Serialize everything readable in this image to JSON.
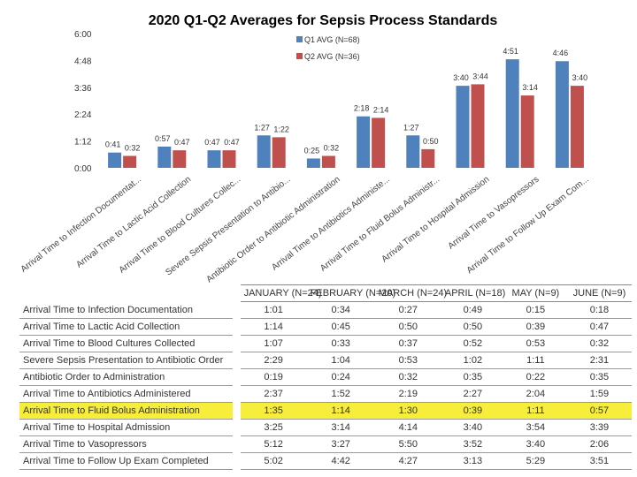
{
  "chart_data": {
    "type": "bar",
    "title": "2020 Q1-Q2 Averages for Sepsis Process Standards",
    "y_ticks": [
      "6:00",
      "4:48",
      "3:36",
      "2:24",
      "1:12",
      "0:00"
    ],
    "ylim_minutes": [
      0,
      360
    ],
    "categories": [
      "Arrival Time to Infection Documentat...",
      "Arrival Time to Lactic Acid Collection",
      "Arrival Time to Blood Cultures Collec...",
      "Severe Sepsis Presentation to Antibio...",
      "Antibiotic Order to Antibiotic Administration",
      "Arrival Time to Antibiotics Administe...",
      "Arrival Time to Fluid Bolus Administr...",
      "Arrival Time to Hospital Admission",
      "Arrival Time to Vasopressors",
      "Arrival Time to Follow Up Exam Com..."
    ],
    "series": [
      {
        "name": "Q1 AVG (N=68)",
        "color": "#4f81bd",
        "values_minutes": [
          41,
          57,
          47,
          87,
          25,
          138,
          87,
          220,
          291,
          286
        ],
        "labels": [
          "0:41",
          "0:57",
          "0:47",
          "1:27",
          "0:25",
          "2:18",
          "1:27",
          "3:40",
          "4:51",
          "4:46"
        ]
      },
      {
        "name": "Q2 AVG (N=36)",
        "color": "#c0504d",
        "values_minutes": [
          32,
          47,
          47,
          82,
          32,
          134,
          50,
          224,
          194,
          220
        ],
        "labels": [
          "0:32",
          "0:47",
          "0:47",
          "1:22",
          "0:32",
          "2:14",
          "0:50",
          "3:44",
          "3:14",
          "3:40"
        ]
      }
    ]
  },
  "table": {
    "columns": [
      "JANUARY (N=24)",
      "FEBRUARY (N=20)",
      "MARCH (N=24)",
      "APRIL (N=18)",
      "MAY (N=9)",
      "JUNE (N=9)"
    ],
    "rows": [
      {
        "label": "Arrival Time to Infection Documentation",
        "values": [
          "1:01",
          "0:34",
          "0:27",
          "0:49",
          "0:15",
          "0:18"
        ],
        "highlight": false
      },
      {
        "label": "Arrival Time to Lactic Acid Collection",
        "values": [
          "1:14",
          "0:45",
          "0:50",
          "0:50",
          "0:39",
          "0:47"
        ],
        "highlight": false
      },
      {
        "label": "Arrival Time to Blood Cultures Collected",
        "values": [
          "1:07",
          "0:33",
          "0:37",
          "0:52",
          "0:53",
          "0:32"
        ],
        "highlight": false
      },
      {
        "label": "Severe Sepsis Presentation to Antibiotic Order",
        "values": [
          "2:29",
          "1:04",
          "0:53",
          "1:02",
          "1:11",
          "2:31"
        ],
        "highlight": false
      },
      {
        "label": "Antibiotic Order to Administration",
        "values": [
          "0:19",
          "0:24",
          "0:32",
          "0:35",
          "0:22",
          "0:35"
        ],
        "highlight": false
      },
      {
        "label": "Arrival Time to Antibiotics Administered",
        "values": [
          "2:37",
          "1:52",
          "2:19",
          "2:27",
          "2:04",
          "1:59"
        ],
        "highlight": false
      },
      {
        "label": "Arrival Time to Fluid Bolus Administration",
        "values": [
          "1:35",
          "1:14",
          "1:30",
          "0:39",
          "1:11",
          "0:57"
        ],
        "highlight": true
      },
      {
        "label": "Arrival Time to Hospital Admission",
        "values": [
          "3:25",
          "3:14",
          "4:14",
          "3:40",
          "3:54",
          "3:39"
        ],
        "highlight": false
      },
      {
        "label": "Arrival Time to Vasopressors",
        "values": [
          "5:12",
          "3:27",
          "5:50",
          "3:52",
          "3:40",
          "2:06"
        ],
        "highlight": false
      },
      {
        "label": "Arrival Time to Follow Up Exam Completed",
        "values": [
          "5:02",
          "4:42",
          "4:27",
          "3:13",
          "5:29",
          "3:51"
        ],
        "highlight": false
      }
    ]
  }
}
